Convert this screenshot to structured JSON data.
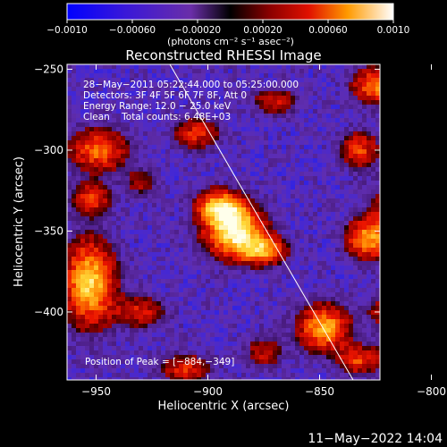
{
  "chart_data": {
    "type": "heatmap",
    "title": "Reconstructed RHESSI Image",
    "xlabel": "Heliocentric X (arcsec)",
    "ylabel": "Heliocentric Y (arcsec)",
    "xlim": [
      -963,
      -823
    ],
    "ylim": [
      -442,
      -247
    ],
    "xticks": [
      -950,
      -900,
      -850,
      -800
    ],
    "yticks": [
      -250,
      -300,
      -350,
      -400
    ],
    "xtick_labels": [
      "−950",
      "−900",
      "−850",
      "−800"
    ],
    "ytick_labels": [
      "−250",
      "−300",
      "−350",
      "−400"
    ],
    "colorbar": {
      "range": [
        -0.001,
        0.001
      ],
      "ticks": [
        -0.001,
        -0.0006,
        -0.0002,
        0.0002,
        0.0006,
        0.001
      ],
      "tick_labels": [
        "−0.0010",
        "−0.00060",
        "−0.00020",
        "0.00020",
        "0.00060",
        "0.0010"
      ],
      "units": "(photons cm⁻² s⁻¹ asec⁻²)"
    },
    "annotations": [
      "28−May−2011 05:22:44.000 to 05:25:00.000",
      "Detectors: 3F 4F 5F 6F 7F 8F, Att 0",
      "Energy Range: 12.0 − 25.0 keV",
      "Clean    Total counts: 6.48E+03"
    ],
    "peak_label": "Position of Peak = [−884,−349]",
    "peak": [
      -884,
      -349
    ],
    "limb_line": [
      [
        -917,
        -247
      ],
      [
        -835,
        -442
      ]
    ],
    "blobs": [
      {
        "x": -888,
        "y": -350,
        "sx": 9,
        "sy": 11,
        "amp": 1.0
      },
      {
        "x": -895,
        "y": -335,
        "sx": 7,
        "sy": 7,
        "amp": 0.75
      },
      {
        "x": -875,
        "y": -362,
        "sx": 7,
        "sy": 6,
        "amp": 0.65
      },
      {
        "x": -953,
        "y": -382,
        "sx": 8,
        "sy": 18,
        "amp": 0.85
      },
      {
        "x": -949,
        "y": -300,
        "sx": 9,
        "sy": 9,
        "amp": 0.6
      },
      {
        "x": -952,
        "y": -330,
        "sx": 6,
        "sy": 7,
        "amp": 0.5
      },
      {
        "x": -813,
        "y": -345,
        "sx": 9,
        "sy": 15,
        "amp": 0.8
      },
      {
        "x": -830,
        "y": -355,
        "sx": 6,
        "sy": 8,
        "amp": 0.6
      },
      {
        "x": -832,
        "y": -300,
        "sx": 6,
        "sy": 8,
        "amp": 0.5
      },
      {
        "x": -825,
        "y": -260,
        "sx": 7,
        "sy": 8,
        "amp": 0.65
      },
      {
        "x": -848,
        "y": -410,
        "sx": 8,
        "sy": 10,
        "amp": 0.75
      },
      {
        "x": -833,
        "y": -430,
        "sx": 6,
        "sy": 6,
        "amp": 0.5
      },
      {
        "x": -812,
        "y": -425,
        "sx": 7,
        "sy": 9,
        "amp": 0.55
      },
      {
        "x": -930,
        "y": -400,
        "sx": 8,
        "sy": 7,
        "amp": 0.4
      },
      {
        "x": -910,
        "y": -435,
        "sx": 8,
        "sy": 6,
        "amp": 0.45
      },
      {
        "x": -875,
        "y": -425,
        "sx": 6,
        "sy": 7,
        "amp": 0.35
      },
      {
        "x": -905,
        "y": -290,
        "sx": 7,
        "sy": 7,
        "amp": 0.45
      },
      {
        "x": -870,
        "y": -270,
        "sx": 7,
        "sy": 6,
        "amp": 0.4
      },
      {
        "x": -930,
        "y": -320,
        "sx": 5,
        "sy": 6,
        "amp": 0.3
      },
      {
        "x": -820,
        "y": -400,
        "sx": 6,
        "sy": 6,
        "amp": 0.4
      }
    ]
  },
  "footer": {
    "timestamp": "11−May−2022 14:04"
  }
}
